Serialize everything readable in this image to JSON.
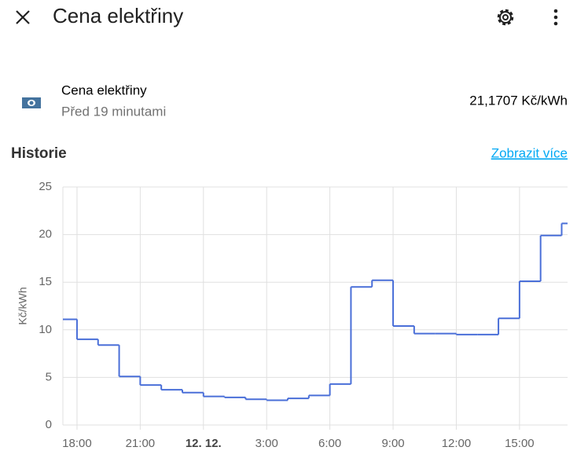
{
  "header": {
    "title": "Cena elektřiny"
  },
  "entity": {
    "name": "Cena elektřiny",
    "last_changed": "Před 19 minutami",
    "state": "21,1707 Kč/kWh"
  },
  "history": {
    "title": "Historie",
    "link": "Zobrazit více"
  },
  "chart_data": {
    "type": "line",
    "step": true,
    "y_label": "Kč/kWh",
    "color": "#4a6fd8",
    "grid": true,
    "x": [
      17.33,
      18,
      19,
      20,
      21,
      22,
      23,
      24,
      25,
      26,
      27,
      28,
      29,
      30,
      31,
      32,
      33,
      34,
      35,
      36,
      37,
      38,
      39,
      40,
      41
    ],
    "values": [
      11.1,
      9.0,
      8.4,
      5.1,
      4.2,
      3.7,
      3.4,
      3.0,
      2.9,
      2.7,
      2.6,
      2.8,
      3.1,
      4.3,
      14.5,
      15.2,
      10.4,
      9.6,
      9.6,
      9.5,
      9.5,
      11.2,
      15.1,
      19.9,
      21.1707
    ],
    "xlim": [
      17.33,
      41.28
    ],
    "xticks": [
      {
        "value": 18,
        "label": "18:00"
      },
      {
        "value": 21,
        "label": "21:00"
      },
      {
        "value": 24,
        "label": "12. 12."
      },
      {
        "value": 27,
        "label": "3:00"
      },
      {
        "value": 30,
        "label": "6:00"
      },
      {
        "value": 33,
        "label": "9:00"
      },
      {
        "value": 36,
        "label": "12:00"
      },
      {
        "value": 39,
        "label": "15:00"
      }
    ],
    "ylim": [
      0,
      25
    ],
    "yticks": [
      0,
      5,
      10,
      15,
      20,
      25
    ]
  }
}
